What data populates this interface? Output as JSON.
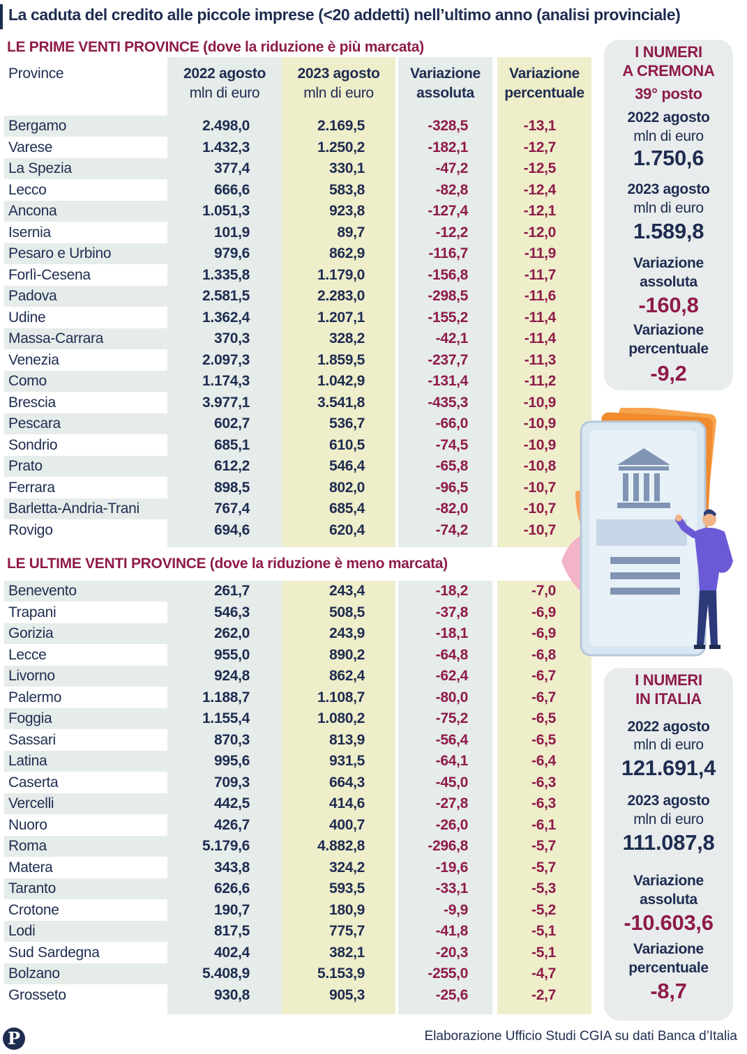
{
  "title": "La caduta del credito alle piccole imprese (<20 addetti) nell’ultimo anno (analisi provinciale)",
  "section_top": "LE PRIME VENTI PROVINCE (dove la riduzione è più marcata)",
  "section_bottom": "LE ULTIME VENTI PROVINCE  (dove la riduzione è meno marcata)",
  "headers": {
    "province": "Province",
    "y2022_l1": "2022 agosto",
    "y2022_l2": "mln di euro",
    "y2023_l1": "2023 agosto",
    "y2023_l2": "mln di euro",
    "abs_l1": "Variazione",
    "abs_l2": "assoluta",
    "pct_l1": "Variazione",
    "pct_l2": "percentuale"
  },
  "colors": {
    "navy": "#1e2c50",
    "bordeaux": "#8e1b4a",
    "grey_col": "#e6ecea",
    "yellow_col": "#efeecb",
    "card_bg": "#e8ecec"
  },
  "cremona": {
    "title_l1": "I NUMERI",
    "title_l2": "A CREMONA",
    "rank": "39° posto",
    "lbl_2022": "2022 agosto",
    "unit_2022": "mln di euro",
    "val_2022": "1.750,6",
    "lbl_2023": "2023 agosto",
    "unit_2023": "mln di euro",
    "val_2023": "1.589,8",
    "lbl_abs_l1": "Variazione",
    "lbl_abs_l2": "assoluta",
    "val_abs": "-160,8",
    "lbl_pct_l1": "Variazione",
    "lbl_pct_l2": "percentuale",
    "val_pct": "-9,2"
  },
  "italia": {
    "title_l1": "I NUMERI",
    "title_l2": "IN ITALIA",
    "lbl_2022": "2022 agosto",
    "unit_2022": "mln di euro",
    "val_2022": "121.691,4",
    "lbl_2023": "2023 agosto",
    "unit_2023": "mln di euro",
    "val_2023": "111.087,8",
    "lbl_abs_l1": "Variazione",
    "lbl_abs_l2": "assoluta",
    "val_abs": "-10.603,6",
    "lbl_pct_l1": "Variazione",
    "lbl_pct_l2": "percentuale",
    "val_pct": "-8,7"
  },
  "source": "Elaborazione Ufficio Studi CGIA su dati Banca d’Italia",
  "logo": "P",
  "chart_data": {
    "type": "table",
    "columns": [
      "Province",
      "2022 agosto mln di euro",
      "2023 agosto mln di euro",
      "Variazione assoluta",
      "Variazione percentuale"
    ],
    "top": [
      [
        "Bergamo",
        "2.498,0",
        "2.169,5",
        "-328,5",
        "-13,1"
      ],
      [
        "Varese",
        "1.432,3",
        "1.250,2",
        "-182,1",
        "-12,7"
      ],
      [
        "La Spezia",
        "377,4",
        "330,1",
        "-47,2",
        "-12,5"
      ],
      [
        "Lecco",
        "666,6",
        "583,8",
        "-82,8",
        "-12,4"
      ],
      [
        "Ancona",
        "1.051,3",
        "923,8",
        "-127,4",
        "-12,1"
      ],
      [
        "Isernia",
        "101,9",
        "89,7",
        "-12,2",
        "-12,0"
      ],
      [
        "Pesaro e Urbino",
        "979,6",
        "862,9",
        "-116,7",
        "-11,9"
      ],
      [
        "Forlì-Cesena",
        "1.335,8",
        "1.179,0",
        "-156,8",
        "-11,7"
      ],
      [
        "Padova",
        "2.581,5",
        "2.283,0",
        "-298,5",
        "-11,6"
      ],
      [
        "Udine",
        "1.362,4",
        "1.207,1",
        "-155,2",
        "-11,4"
      ],
      [
        "Massa-Carrara",
        "370,3",
        "328,2",
        "-42,1",
        "-11,4"
      ],
      [
        "Venezia",
        "2.097,3",
        "1.859,5",
        "-237,7",
        "-11,3"
      ],
      [
        "Como",
        "1.174,3",
        "1.042,9",
        "-131,4",
        "-11,2"
      ],
      [
        "Brescia",
        "3.977,1",
        "3.541,8",
        "-435,3",
        "-10,9"
      ],
      [
        "Pescara",
        "602,7",
        "536,7",
        "-66,0",
        "-10,9"
      ],
      [
        "Sondrio",
        "685,1",
        "610,5",
        "-74,5",
        "-10,9"
      ],
      [
        "Prato",
        "612,2",
        "546,4",
        "-65,8",
        "-10,8"
      ],
      [
        "Ferrara",
        "898,5",
        "802,0",
        "-96,5",
        "-10,7"
      ],
      [
        "Barletta-Andria-Trani",
        "767,4",
        "685,4",
        "-82,0",
        "-10,7"
      ],
      [
        "Rovigo",
        "694,6",
        "620,4",
        "-74,2",
        "-10,7"
      ]
    ],
    "bottom": [
      [
        "Benevento",
        "261,7",
        "243,4",
        "-18,2",
        "-7,0"
      ],
      [
        "Trapani",
        "546,3",
        "508,5",
        "-37,8",
        "-6,9"
      ],
      [
        "Gorizia",
        "262,0",
        "243,9",
        "-18,1",
        "-6,9"
      ],
      [
        "Lecce",
        "955,0",
        "890,2",
        "-64,8",
        "-6,8"
      ],
      [
        "Livorno",
        "924,8",
        "862,4",
        "-62,4",
        "-6,7"
      ],
      [
        "Palermo",
        "1.188,7",
        "1.108,7",
        "-80,0",
        "-6,7"
      ],
      [
        "Foggia",
        "1.155,4",
        "1.080,2",
        "-75,2",
        "-6,5"
      ],
      [
        "Sassari",
        "870,3",
        "813,9",
        "-56,4",
        "-6,5"
      ],
      [
        "Latina",
        "995,6",
        "931,5",
        "-64,1",
        "-6,4"
      ],
      [
        "Caserta",
        "709,3",
        "664,3",
        "-45,0",
        "-6,3"
      ],
      [
        "Vercelli",
        "442,5",
        "414,6",
        "-27,8",
        "-6,3"
      ],
      [
        "Nuoro",
        "426,7",
        "400,7",
        "-26,0",
        "-6,1"
      ],
      [
        "Roma",
        "5.179,6",
        "4.882,8",
        "-296,8",
        "-5,7"
      ],
      [
        "Matera",
        "343,8",
        "324,2",
        "-19,6",
        "-5,7"
      ],
      [
        "Taranto",
        "626,6",
        "593,5",
        "-33,1",
        "-5,3"
      ],
      [
        "Crotone",
        "190,7",
        "180,9",
        "-9,9",
        "-5,2"
      ],
      [
        "Lodi",
        "817,5",
        "775,7",
        "-41,8",
        "-5,1"
      ],
      [
        "Sud Sardegna",
        "402,4",
        "382,1",
        "-20,3",
        "-5,1"
      ],
      [
        "Bolzano",
        "5.408,9",
        "5.153,9",
        "-255,0",
        "-4,7"
      ],
      [
        "Grosseto",
        "930,8",
        "905,3",
        "-25,6",
        "-2,7"
      ]
    ]
  }
}
